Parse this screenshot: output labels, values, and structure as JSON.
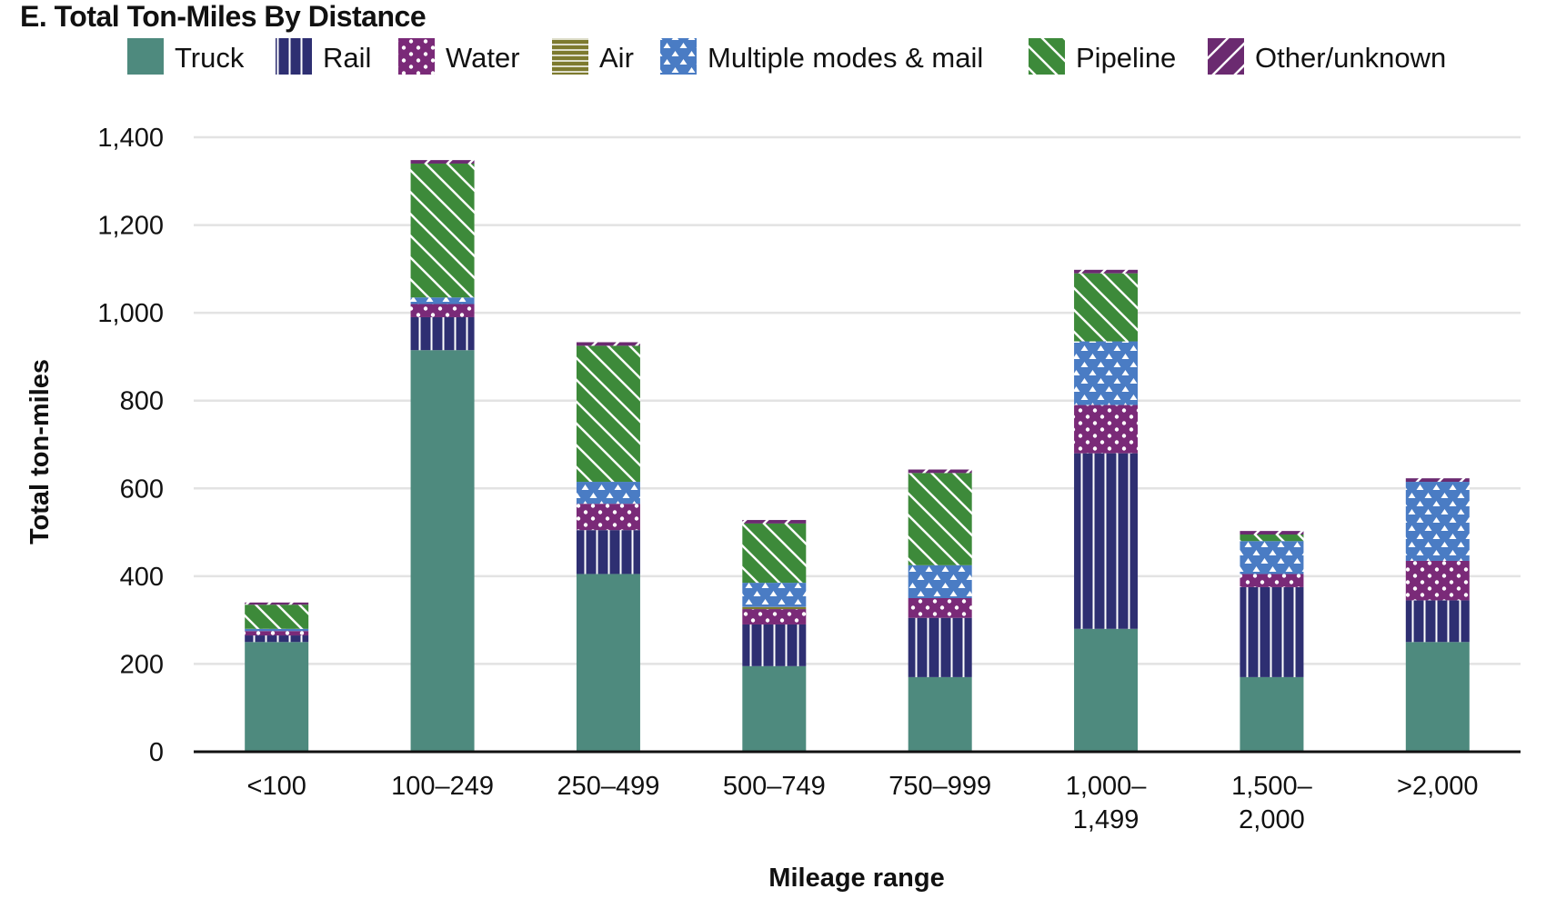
{
  "chart_data": {
    "type": "bar",
    "stacked": true,
    "title": "E. Total Ton-Miles By Distance",
    "xlabel": "Mileage range",
    "ylabel": "Total ton-miles",
    "ylim": [
      0,
      1400
    ],
    "yticks": [
      0,
      200,
      400,
      600,
      800,
      1000,
      1200,
      1400
    ],
    "ytick_labels": [
      "0",
      "200",
      "400",
      "600",
      "800",
      "1,000",
      "1,200",
      "1,400"
    ],
    "grid": true,
    "legend_position": "top",
    "categories": [
      "<100",
      "100–249",
      "250–499",
      "500–749",
      "750–999",
      "1,000–\n1,499",
      "1,500–\n2,000",
      ">2,000"
    ],
    "series": [
      {
        "name": "Truck",
        "color": "#4e8a7e",
        "pattern": "solid",
        "values": [
          250,
          915,
          405,
          195,
          170,
          280,
          170,
          250
        ]
      },
      {
        "name": "Rail",
        "color": "#2e2f72",
        "pattern": "vertical-lines",
        "values": [
          15,
          75,
          100,
          95,
          135,
          400,
          205,
          95
        ]
      },
      {
        "name": "Water",
        "color": "#7a2a78",
        "pattern": "dots",
        "values": [
          10,
          30,
          60,
          35,
          45,
          110,
          30,
          90
        ]
      },
      {
        "name": "Air",
        "color": "#7d7a2e",
        "pattern": "horizontal-lines",
        "values": [
          0,
          0,
          0,
          5,
          0,
          0,
          0,
          0
        ]
      },
      {
        "name": "Multiple modes & mail",
        "color": "#4a7cc4",
        "pattern": "triangles",
        "values": [
          5,
          15,
          50,
          55,
          75,
          145,
          75,
          180
        ]
      },
      {
        "name": "Pipeline",
        "color": "#3d8a3a",
        "pattern": "diagonal-lines",
        "values": [
          55,
          305,
          310,
          135,
          210,
          155,
          15,
          0
        ]
      },
      {
        "name": "Other/unknown",
        "color": "#6b2a70",
        "pattern": "diagonal-lines-rev",
        "values": [
          5,
          8,
          8,
          8,
          8,
          8,
          8,
          8
        ]
      }
    ]
  }
}
